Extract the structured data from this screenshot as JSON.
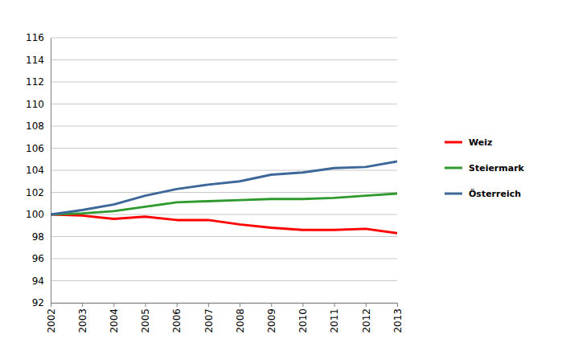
{
  "chart_data": {
    "type": "line",
    "categories": [
      "2002",
      "2003",
      "2004",
      "2005",
      "2006",
      "2007",
      "2008",
      "2009",
      "2010",
      "2011",
      "2012",
      "2013"
    ],
    "series": [
      {
        "name": "Weiz",
        "color": "#ff0000",
        "values": [
          100,
          99.9,
          99.6,
          99.8,
          99.5,
          99.5,
          99.1,
          98.8,
          98.6,
          98.6,
          98.7,
          98.3
        ]
      },
      {
        "name": "Steiermark",
        "color": "#2e9a2e",
        "values": [
          100,
          100.1,
          100.3,
          100.7,
          101.1,
          101.2,
          101.3,
          101.4,
          101.4,
          101.5,
          101.7,
          101.9
        ]
      },
      {
        "name": "Österreich",
        "color": "#3d6699",
        "values": [
          100,
          100.4,
          100.9,
          101.7,
          102.3,
          102.7,
          103.0,
          103.6,
          103.8,
          104.2,
          104.3,
          104.8
        ]
      }
    ],
    "ylim": [
      92,
      116
    ],
    "yticks": [
      92,
      94,
      96,
      98,
      100,
      102,
      104,
      106,
      108,
      110,
      112,
      114,
      116
    ],
    "grid": true,
    "legend": "right"
  }
}
